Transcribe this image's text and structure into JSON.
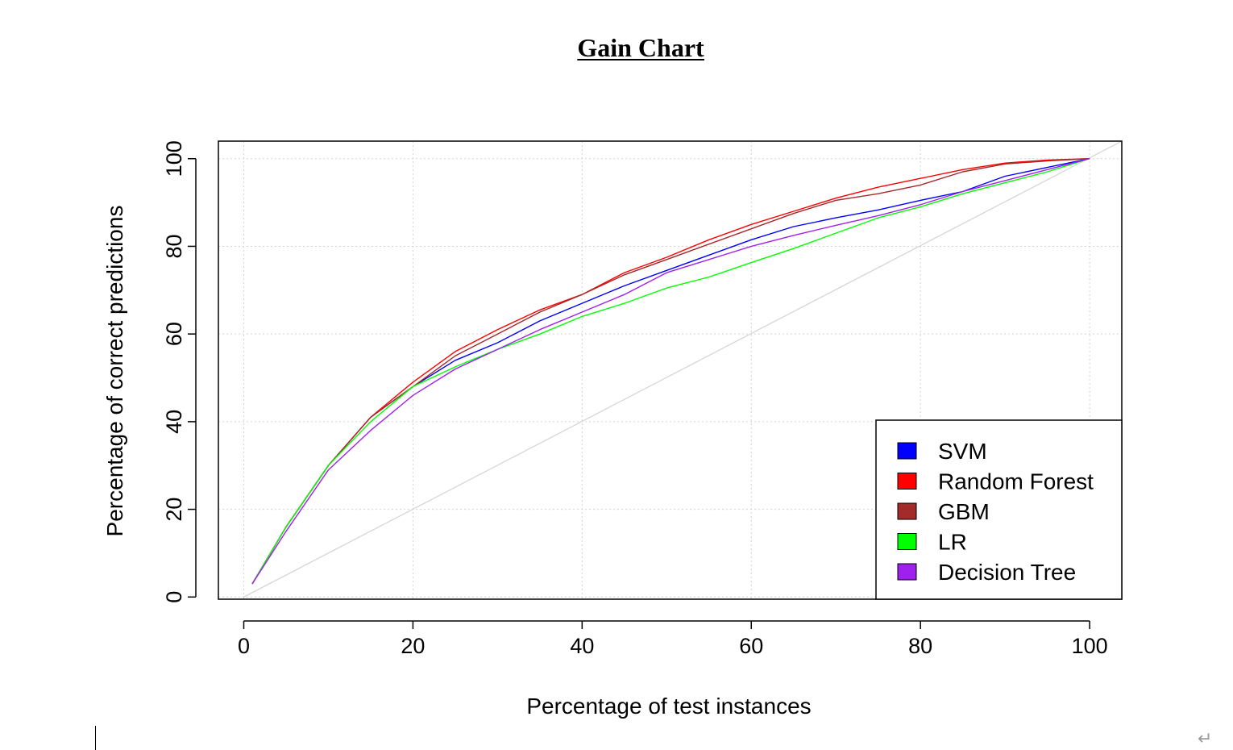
{
  "chart_data": {
    "type": "line",
    "title": "Gain Chart",
    "xlabel": "Percentage of test instances",
    "ylabel": "Percentage of correct predictions",
    "xlim": [
      -3.0,
      103.8
    ],
    "ylim": [
      -0.5,
      104.0
    ],
    "xticks": [
      "0",
      "20",
      "40",
      "60",
      "80",
      "100"
    ],
    "yticks": [
      "0",
      "20",
      "40",
      "60",
      "80",
      "100"
    ],
    "grid": true,
    "legend_position": "bottom-right",
    "reference_line": {
      "x": [
        0,
        103.8
      ],
      "y": [
        0,
        104.0
      ],
      "color": "#d3d3d3"
    },
    "series": [
      {
        "name": "SVM",
        "color": "#0000ff",
        "x": [
          1,
          5,
          10,
          15,
          20,
          25,
          30,
          35,
          40,
          45,
          50,
          55,
          60,
          65,
          70,
          75,
          80,
          85,
          90,
          95,
          100
        ],
        "y": [
          3,
          16,
          30,
          41,
          48,
          54,
          58,
          63,
          67,
          71,
          74.5,
          78,
          81.5,
          84.5,
          86.5,
          88.3,
          90.5,
          92.5,
          96,
          98,
          100
        ]
      },
      {
        "name": "Random Forest",
        "color": "#ff0000",
        "x": [
          1,
          5,
          10,
          15,
          20,
          25,
          30,
          35,
          40,
          45,
          50,
          55,
          60,
          65,
          70,
          75,
          80,
          85,
          90,
          95,
          100
        ],
        "y": [
          3,
          16,
          30,
          41,
          49,
          56,
          61,
          65.5,
          69,
          74,
          77.5,
          81.5,
          85,
          88,
          91,
          93.5,
          95.5,
          97.5,
          99,
          99.7,
          100
        ]
      },
      {
        "name": "GBM",
        "color": "#a52a2a",
        "x": [
          1,
          5,
          10,
          15,
          20,
          25,
          30,
          35,
          40,
          45,
          50,
          55,
          60,
          65,
          70,
          75,
          80,
          85,
          90,
          95,
          100
        ],
        "y": [
          3,
          16,
          30,
          41,
          48,
          55,
          60,
          65,
          69,
          73.5,
          77,
          80.5,
          84,
          87.5,
          90.5,
          92,
          94,
          97,
          98.8,
          99.5,
          100
        ]
      },
      {
        "name": "LR",
        "color": "#00ff00",
        "x": [
          1,
          5,
          10,
          15,
          20,
          25,
          30,
          35,
          40,
          45,
          50,
          55,
          60,
          65,
          70,
          75,
          80,
          85,
          90,
          95,
          100
        ],
        "y": [
          3,
          16,
          30,
          40,
          48,
          52.5,
          56.5,
          60,
          64,
          67,
          70.5,
          73,
          76.3,
          79.5,
          83,
          86.5,
          89,
          92,
          94.5,
          97,
          100
        ]
      },
      {
        "name": "Decision Tree",
        "color": "#a020f0",
        "x": [
          1,
          5,
          10,
          15,
          20,
          25,
          30,
          35,
          40,
          45,
          50,
          55,
          60,
          65,
          70,
          75,
          80,
          85,
          90,
          95,
          100
        ],
        "y": [
          3,
          15,
          29,
          38,
          46,
          52,
          56.5,
          61,
          65,
          69,
          74,
          77,
          80,
          82.5,
          84.8,
          87,
          89.5,
          92.5,
          95,
          97.5,
          100
        ]
      }
    ]
  },
  "document": {
    "paragraph_mark": "↵"
  }
}
